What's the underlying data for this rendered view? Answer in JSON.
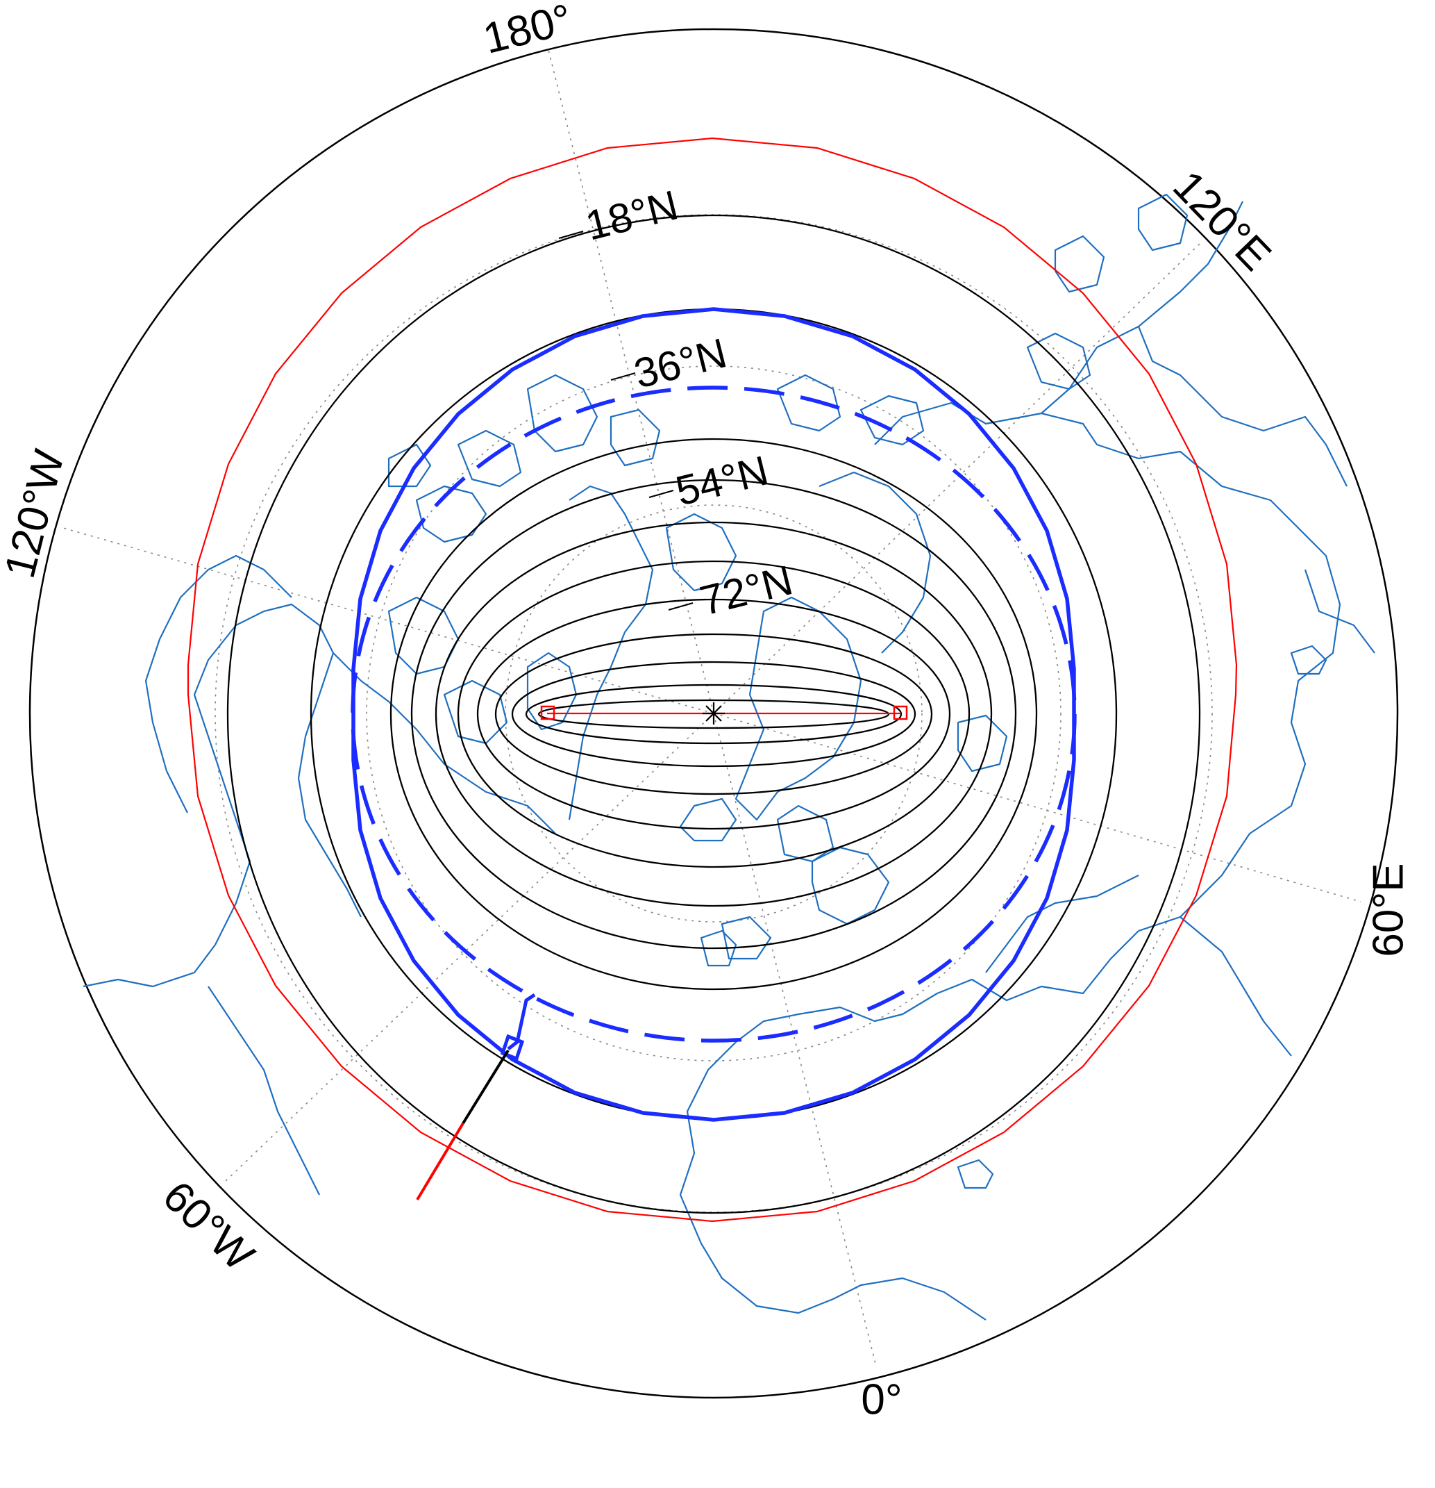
{
  "map": {
    "projection": "polar azimuthal",
    "meridian_labels": {
      "deg180": "180°",
      "e120": "120°E",
      "e60": "60°E",
      "deg0": "0°",
      "w60": "60°W",
      "w120": "120°W"
    },
    "parallel_labels": {
      "n18": "18°N",
      "n36": "36°N",
      "n54": "54°N",
      "n72": "72°N"
    },
    "colors": {
      "coastline": "#1f6fc0",
      "outer_frame": "#000000",
      "red_ring": "#ff0000",
      "blue_ring": "#1a2cff",
      "contours": "#000000",
      "graticule": "#888888"
    },
    "icons": [
      "center-star-icon",
      "red-endpoint-square-icon"
    ]
  }
}
